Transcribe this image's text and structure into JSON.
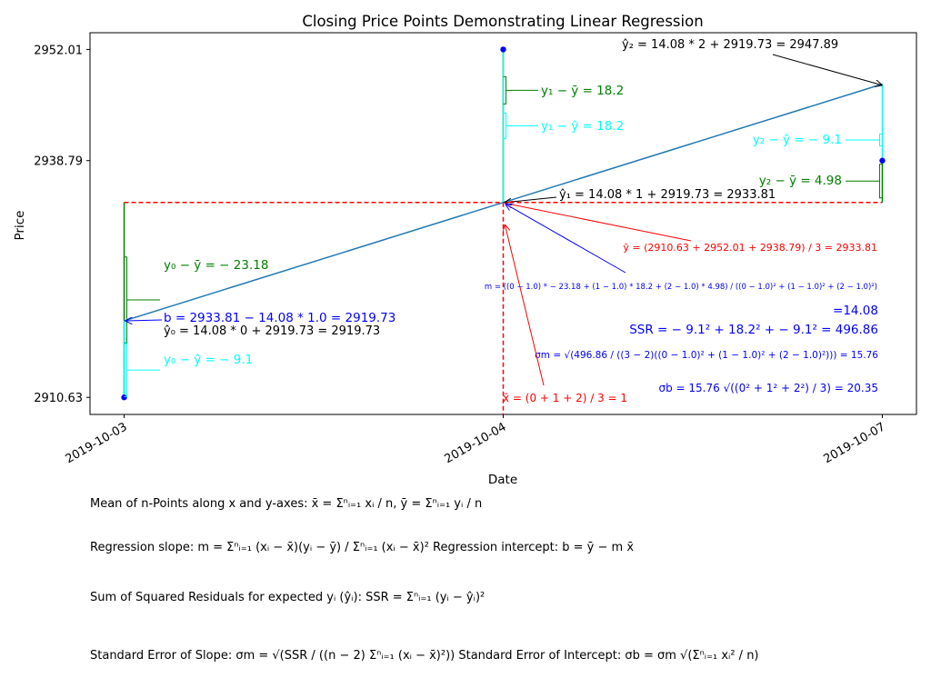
{
  "chart_data": {
    "type": "scatter",
    "title": "Closing Price Points Demonstrating Linear Regression",
    "xlabel": "Date",
    "ylabel": "Price",
    "x_tick_labels": [
      "2019-10-03",
      "2019-10-04",
      "2019-10-07"
    ],
    "y_tick_labels": [
      "2910.63",
      "2938.79",
      "2952.01"
    ],
    "points": [
      {
        "x": 0,
        "date": "2019-10-03",
        "y": 2910.63
      },
      {
        "x": 1,
        "date": "2019-10-04",
        "y": 2952.01
      },
      {
        "x": 2,
        "date": "2019-10-07",
        "y": 2938.79
      }
    ],
    "mean": {
      "x": 1,
      "y": 2933.81
    },
    "regression": {
      "slope": 14.08,
      "intercept": 2919.73,
      "predicted": [
        2919.73,
        2933.81,
        2947.89
      ]
    },
    "ylim": [
      2908.6,
      2954.0
    ],
    "xlim": [
      -0.09,
      2.09
    ],
    "grid": false,
    "colors": {
      "points": "#0000ff",
      "regression_line": "#1f77b4",
      "mean_lines": "#ff0000",
      "deviation": "#008000",
      "residual": "#00ffff",
      "annotation": "#000000"
    },
    "annotations": {
      "yhat2": "ŷ₂ = 14.08 * 2 + 2919.73 = 2947.89",
      "y1_minus_ybar": "y₁ − ȳ = 18.2",
      "y1_minus_yhat": "y₁ − ŷ = 18.2",
      "y2_minus_yhat": "y₂ − ŷ = − 9.1",
      "y2_minus_ybar": "y₂ − ȳ = 4.98",
      "yhat1": "ŷ₁ = 14.08 * 1 + 2919.73 = 2933.81",
      "ybar": "ȳ = (2910.63 + 2952.01 + 2938.79) / 3 = 2933.81",
      "y0_minus_ybar": "y₀ − ȳ = − 23.18",
      "slope": "m = ((0 − 1.0) * − 23.18 + (1 − 1.0) * 18.2 + (2 − 1.0) * 4.98) / ((0 − 1.0)² + (1 − 1.0)² + (2 − 1.0)²)",
      "slope_result": "=14.08",
      "intercept": "b = 2933.81 − 14.08 * 1.0 = 2919.73",
      "yhat0": "ŷ₀ = 14.08 * 0 + 2919.73 = 2919.73",
      "ssr": "SSR = − 9.1² + 18.2² + − 9.1² = 496.86",
      "y0_minus_yhat": "y₀ − ŷ = − 9.1",
      "sigma_m": "σm = √(496.86 / ((3 − 2)((0 − 1.0)² + (1 − 1.0)² + (2 − 1.0)²))) = 15.76",
      "xbar": "x̄ = (0 + 1 + 2) / 3 = 1",
      "sigma_b": "σb = 15.76 √((0² + 1² + 2²) / 3) = 20.35"
    }
  },
  "formulas": {
    "mean": "Mean of n-Points along x and y-axes: x̄ = Σⁿᵢ₌₁ xᵢ / n, ȳ = Σⁿᵢ₌₁ yᵢ / n",
    "regression": "Regression slope: m = Σⁿᵢ₌₁ (xᵢ − x̄)(yᵢ − ȳ) / Σⁿᵢ₌₁ (xᵢ − x̄)²   Regression intercept: b = ȳ − m x̄",
    "ssr": "Sum of Squared Residuals for expected yᵢ (ŷᵢ): SSR = Σⁿᵢ₌₁ (yᵢ − ŷᵢ)²",
    "stderr": "Standard Error of Slope: σm = √(SSR / ((n − 2) Σⁿᵢ₌₁ (xᵢ − x̄)²))   Standard Error of Intercept: σb = σm √(Σⁿᵢ₌₁ xᵢ² / n)"
  }
}
